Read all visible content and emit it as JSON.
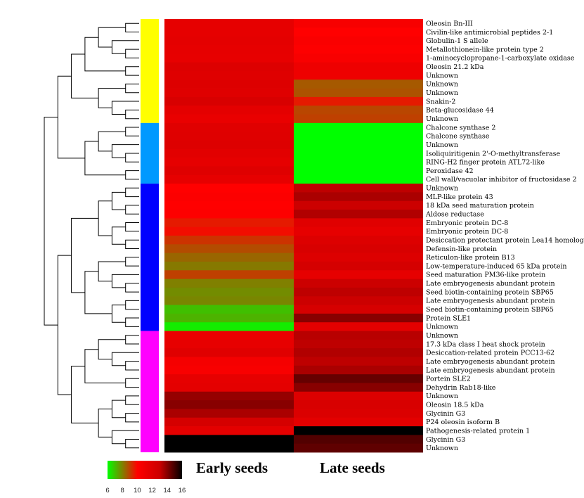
{
  "chart_data": {
    "type": "heatmap",
    "title": "",
    "columns": [
      "Early seeds",
      "Late seeds"
    ],
    "rows": [
      "Oleosin Bn-III",
      "Civilin-like antimicrobial peptides 2-1",
      "Globulin-1 S allele",
      "Metallothionein-like protein type 2",
      "1-aminocyclopropane-1-carboxylate oxidase",
      "Oleosin 21.2 kDa",
      "Unknown",
      "Unknown",
      "Unknown",
      "Snakin-2",
      "Beta-glucosidase 44",
      "Unknown",
      "Chalcone synthase 2",
      "Chalcone synthase",
      "Unknown",
      "Isoliquiritigenin 2'-O-methyltransferase",
      "RING-H2 finger protein ATL72-like",
      "Peroxidase 42",
      "Cell wall/vacuolar inhibitor of fructosidase 2",
      "Unknown",
      "MLP-like protein 43",
      "18 kDa seed maturation protein",
      "Aldose reductase",
      "Embryonic protein DC-8",
      "Embryonic protein DC-8",
      "Desiccation protectant protein Lea14 homolog",
      "Defensin-like protein",
      "Reticulon-like protein B13",
      "Low-temperature-induced 65 kDa protein",
      "Seed maturation PM36-like protein",
      "Late embryogenesis abundant protein",
      "Seed biotin-containing protein SBP65",
      "Late embryogenesis abundant protein",
      "Seed biotin-containing protein SBP65",
      "Protein SLE1",
      "Unknown",
      "Unknown",
      "17.3 kDa class I heat shock protein",
      "Desiccation-related protein PCC13-62",
      "Late embryogenesis abundant protein",
      "Late embryogenesis abundant protein",
      "Portein SLE2",
      "Dehydrin Rab18-like",
      "Unknown",
      "Oleosin 18.5 kDa",
      "Glycinin G3",
      "P24 oleosin isoform B",
      "Pathogenesis-related protein 1",
      "Glycinin G3",
      "Unknown"
    ],
    "values": [
      [
        11.5,
        10.5
      ],
      [
        11.5,
        10.0
      ],
      [
        11.6,
        10.3
      ],
      [
        11.5,
        10.1
      ],
      [
        11.4,
        10.4
      ],
      [
        12.0,
        11.0
      ],
      [
        11.9,
        11.0
      ],
      [
        12.0,
        8.6
      ],
      [
        11.9,
        8.7
      ],
      [
        12.3,
        9.6
      ],
      [
        11.6,
        8.9
      ],
      [
        11.3,
        9.0
      ],
      [
        11.8,
        6.0
      ],
      [
        11.9,
        6.0
      ],
      [
        12.0,
        6.0
      ],
      [
        11.7,
        6.0
      ],
      [
        11.5,
        6.0
      ],
      [
        11.9,
        6.0
      ],
      [
        11.5,
        6.0
      ],
      [
        10.0,
        13.2
      ],
      [
        10.2,
        13.5
      ],
      [
        10.0,
        13.0
      ],
      [
        10.1,
        13.4
      ],
      [
        9.6,
        11.8
      ],
      [
        9.8,
        11.5
      ],
      [
        9.2,
        12.0
      ],
      [
        8.8,
        12.3
      ],
      [
        8.4,
        12.0
      ],
      [
        8.1,
        12.5
      ],
      [
        9.0,
        11.5
      ],
      [
        8.0,
        13.0
      ],
      [
        7.8,
        13.2
      ],
      [
        7.9,
        13.0
      ],
      [
        7.0,
        12.4
      ],
      [
        7.2,
        14.0
      ],
      [
        6.3,
        11.6
      ],
      [
        11.2,
        13.3
      ],
      [
        11.4,
        13.2
      ],
      [
        11.8,
        13.4
      ],
      [
        10.6,
        13.2
      ],
      [
        10.4,
        13.5
      ],
      [
        11.5,
        14.5
      ],
      [
        11.6,
        14.0
      ],
      [
        13.8,
        12.0
      ],
      [
        14.0,
        12.3
      ],
      [
        13.5,
        12.1
      ],
      [
        12.5,
        11.6
      ],
      [
        11.6,
        16.0
      ],
      [
        16.0,
        14.8
      ],
      [
        16.0,
        14.6
      ]
    ],
    "clusters": [
      {
        "name": "yellow",
        "color": "#ffff00",
        "rows": [
          0,
          11
        ]
      },
      {
        "name": "light-blue",
        "color": "#0099ff",
        "rows": [
          12,
          18
        ]
      },
      {
        "name": "blue",
        "color": "#0000ff",
        "rows": [
          19,
          35
        ]
      },
      {
        "name": "magenta",
        "color": "#ff00ff",
        "rows": [
          36,
          49
        ]
      }
    ],
    "colorscale": {
      "min": 6,
      "max": 16,
      "stops": [
        {
          "value": 6,
          "color": "#00ff00"
        },
        {
          "value": 10,
          "color": "#ff0000"
        },
        {
          "value": 13,
          "color": "#cc0000"
        },
        {
          "value": 16,
          "color": "#000000"
        }
      ]
    },
    "legend_ticks": [
      "6",
      "8",
      "10",
      "12",
      "14",
      "16"
    ],
    "dendrogram": "rows clustered hierarchically (left)"
  }
}
